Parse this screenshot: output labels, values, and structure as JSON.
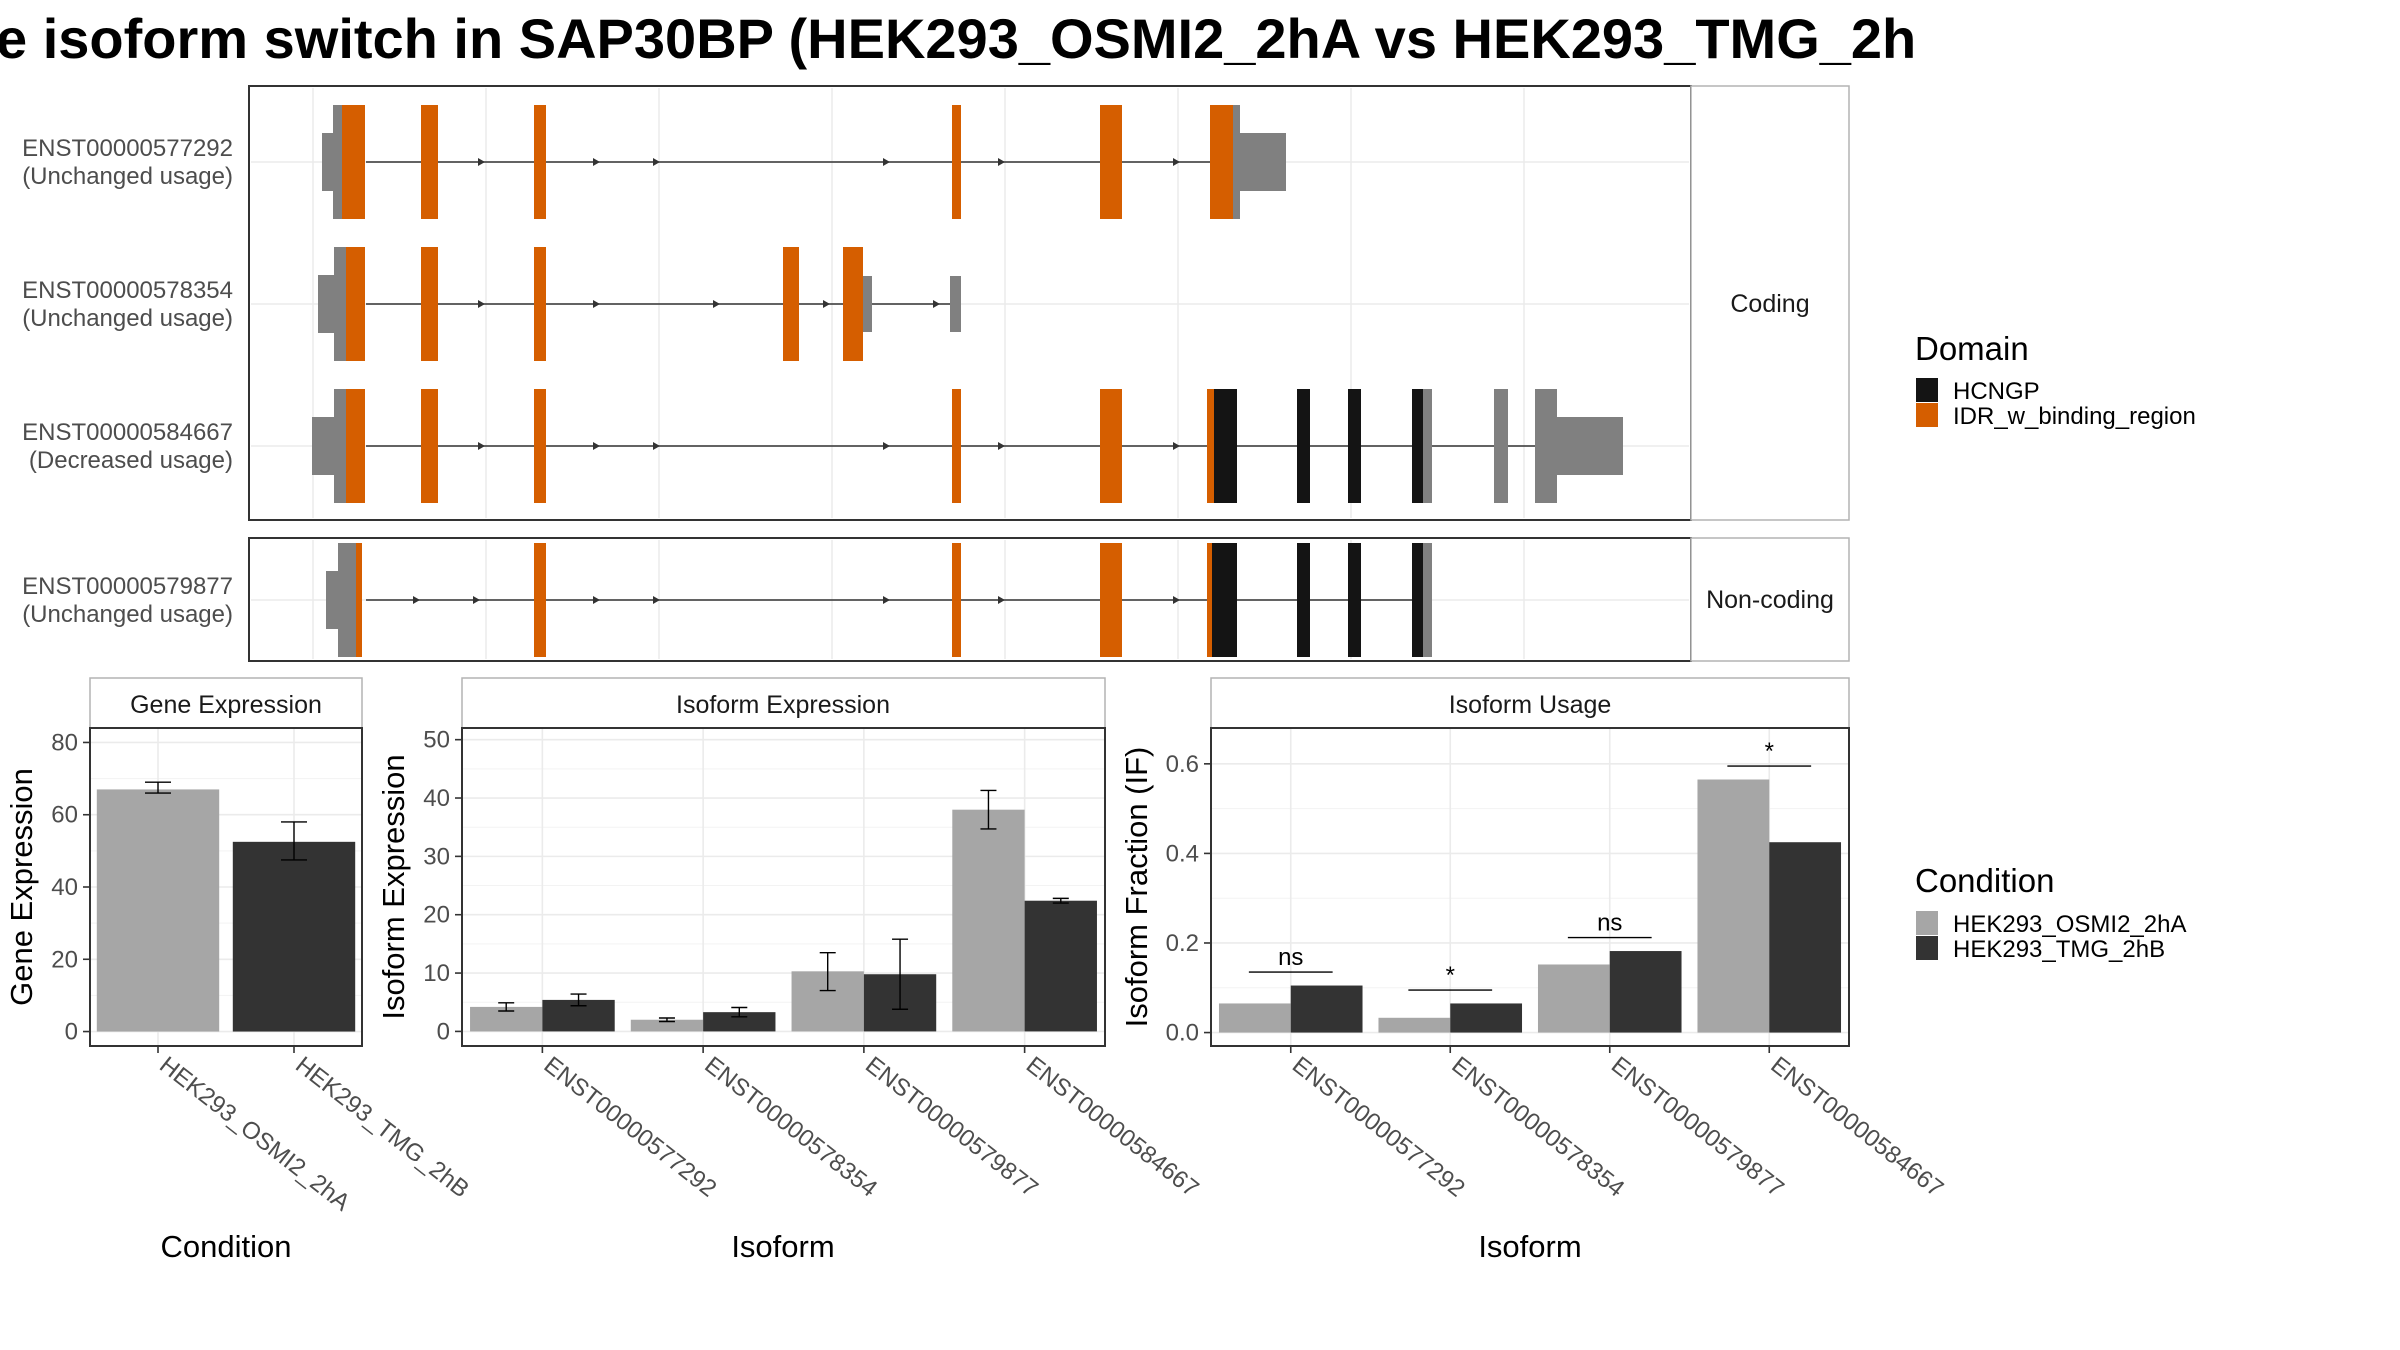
{
  "title": "e isoform switch in SAP30BP (HEK293_OSMI2_2hA vs HEK293_TMG_2h",
  "colors": {
    "utr": "#808080",
    "idr": "#D55E00",
    "hcngp": "#141414",
    "cond_a": "#A6A6A6",
    "cond_b": "#333333"
  },
  "structure": {
    "groups": [
      {
        "label": "Coding"
      },
      {
        "label": "Non-coding"
      }
    ],
    "transcripts": [
      {
        "id": "ENST00000577292",
        "usage": "(Unchanged usage)",
        "group": 0
      },
      {
        "id": "ENST00000578354",
        "usage": "(Unchanged usage)",
        "group": 0
      },
      {
        "id": "ENST00000584667",
        "usage": "(Decreased usage)",
        "group": 0
      },
      {
        "id": "ENST00000579877",
        "usage": "(Unchanged usage)",
        "group": 1
      }
    ]
  },
  "legend_domain": {
    "title": "Domain",
    "items": [
      {
        "label": "HCNGP",
        "color": "#141414"
      },
      {
        "label": "IDR_w_binding_region",
        "color": "#D55E00"
      }
    ]
  },
  "legend_condition": {
    "title": "Condition",
    "items": [
      {
        "label": "HEK293_OSMI2_2hA",
        "color": "#A6A6A6"
      },
      {
        "label": "HEK293_TMG_2hB",
        "color": "#333333"
      }
    ]
  },
  "chart_data": [
    {
      "type": "bar",
      "title": "Gene Expression",
      "xlabel": "Condition",
      "ylabel": "Gene Expression",
      "categories": [
        "HEK293_OSMI2_2hA",
        "HEK293_TMG_2hB"
      ],
      "values": [
        67,
        52.5
      ],
      "error_low": [
        66,
        47.5
      ],
      "error_high": [
        69,
        58
      ],
      "ylim": [
        -4,
        84
      ],
      "yticks": [
        0,
        20,
        40,
        60,
        80
      ],
      "grid": true
    },
    {
      "type": "bar",
      "title": "Isoform Expression",
      "xlabel": "Isoform",
      "ylabel": "Isoform Expression",
      "categories": [
        "ENST00000577292",
        "ENST00000578354",
        "ENST00000579877",
        "ENST00000584667"
      ],
      "series": [
        {
          "name": "HEK293_OSMI2_2hA",
          "values": [
            4.2,
            2.0,
            10.3,
            38.0
          ],
          "error_low": [
            3.5,
            1.7,
            7.0,
            34.7
          ],
          "error_high": [
            4.9,
            2.3,
            13.5,
            41.3
          ]
        },
        {
          "name": "HEK293_TMG_2hB",
          "values": [
            5.4,
            3.3,
            9.8,
            22.4
          ],
          "error_low": [
            4.4,
            2.5,
            3.8,
            22.0
          ],
          "error_high": [
            6.4,
            4.1,
            15.8,
            22.8
          ]
        }
      ],
      "ylim": [
        -2.5,
        52
      ],
      "yticks": [
        0,
        10,
        20,
        30,
        40,
        50
      ],
      "grid": true
    },
    {
      "type": "bar",
      "title": "Isoform Usage",
      "xlabel": "Isoform",
      "ylabel": "Isoform Fraction (IF)",
      "categories": [
        "ENST00000577292",
        "ENST00000578354",
        "ENST00000579877",
        "ENST00000584667"
      ],
      "series": [
        {
          "name": "HEK293_OSMI2_2hA",
          "values": [
            0.065,
            0.033,
            0.152,
            0.565
          ]
        },
        {
          "name": "HEK293_TMG_2hB",
          "values": [
            0.105,
            0.065,
            0.182,
            0.425
          ]
        }
      ],
      "significance": [
        "ns",
        "*",
        "ns",
        "*"
      ],
      "significance_y": [
        0.135,
        0.095,
        0.212,
        0.595
      ],
      "ylim": [
        -0.03,
        0.68
      ],
      "yticks": [
        "0.0",
        "0.2",
        "0.4",
        "0.6"
      ],
      "grid": true
    }
  ]
}
